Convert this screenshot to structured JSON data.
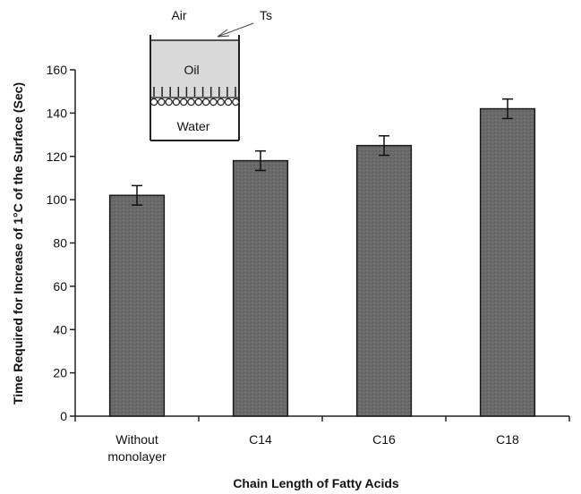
{
  "chart_data": {
    "type": "bar",
    "categories": [
      "Without monolayer",
      "C14",
      "C16",
      "C18"
    ],
    "values": [
      102,
      118,
      125,
      142
    ],
    "error": [
      4.5,
      4.5,
      4.5,
      4.5
    ],
    "xlabel": "Chain Length of Fatty Acids",
    "ylabel": "Time Required for Increase of 1°C of the Surface (Sec)",
    "ylim": [
      0,
      160
    ],
    "yticks": [
      0,
      20,
      40,
      60,
      80,
      100,
      120,
      140,
      160
    ],
    "grid": false,
    "colors": {
      "bar": "#6b6b6b",
      "bar_edge": "#1a1a1a",
      "oil": "#d9d9d9"
    }
  },
  "inset": {
    "air_label": "Air",
    "ts_label": "Ts",
    "oil_label": "Oil",
    "water_label": "Water"
  }
}
